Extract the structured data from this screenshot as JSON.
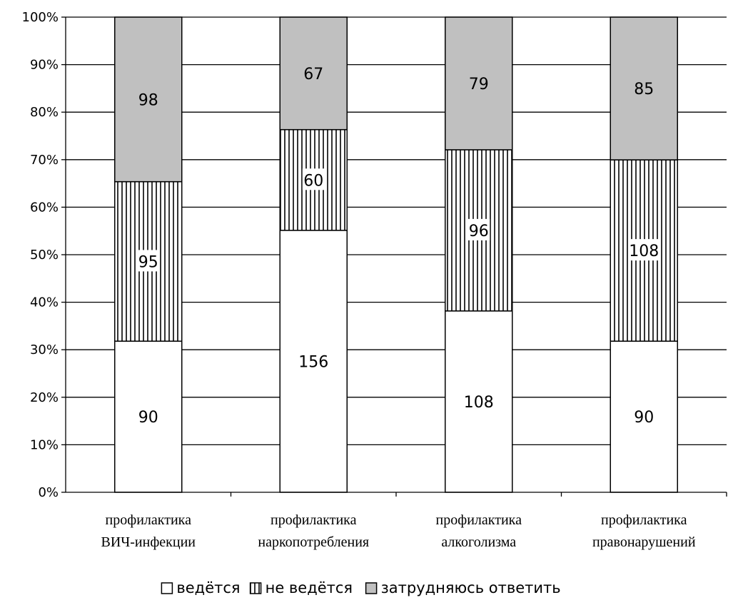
{
  "chart_data": {
    "type": "bar",
    "stacked": "percent",
    "categories": [
      [
        "профилактика",
        "ВИЧ-инфекции"
      ],
      [
        "профилактика",
        "наркопотребления"
      ],
      [
        "профилактика",
        "алкоголизма"
      ],
      [
        "профилактика",
        "правонарушений"
      ]
    ],
    "series": [
      {
        "name": "ведётся",
        "values": [
          90,
          156,
          108,
          90
        ],
        "fill": "#ffffff",
        "pattern": "none"
      },
      {
        "name": "не ведётся",
        "values": [
          95,
          60,
          96,
          108
        ],
        "fill": "#ffffff",
        "pattern": "vertical-lines"
      },
      {
        "name": "затрудняюсь ответить",
        "values": [
          98,
          67,
          79,
          85
        ],
        "fill": "#c0c0c0",
        "pattern": "none"
      }
    ],
    "y_ticks": [
      "0%",
      "10%",
      "20%",
      "30%",
      "40%",
      "50%",
      "60%",
      "70%",
      "80%",
      "90%",
      "100%"
    ],
    "ylim": [
      0,
      100
    ],
    "grid": true,
    "legend_position": "bottom",
    "data_labels": true
  }
}
